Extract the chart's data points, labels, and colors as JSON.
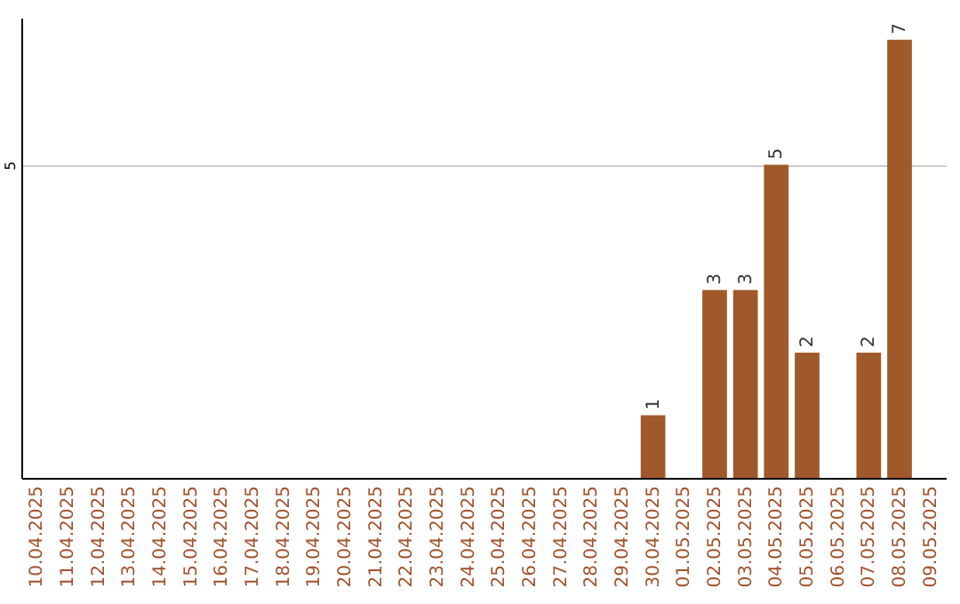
{
  "chart_data": {
    "type": "bar",
    "categories": [
      "10.04.2025",
      "11.04.2025",
      "12.04.2025",
      "13.04.2025",
      "14.04.2025",
      "15.04.2025",
      "16.04.2025",
      "17.04.2025",
      "18.04.2025",
      "19.04.2025",
      "20.04.2025",
      "21.04.2025",
      "22.04.2025",
      "23.04.2025",
      "24.04.2025",
      "25.04.2025",
      "26.04.2025",
      "27.04.2025",
      "28.04.2025",
      "29.04.2025",
      "30.04.2025",
      "01.05.2025",
      "02.05.2025",
      "03.05.2025",
      "04.05.2025",
      "05.05.2025",
      "06.05.2025",
      "07.05.2025",
      "08.05.2025",
      "09.05.2025"
    ],
    "values": [
      null,
      null,
      null,
      null,
      null,
      null,
      null,
      null,
      null,
      null,
      null,
      null,
      null,
      null,
      null,
      null,
      null,
      null,
      null,
      null,
      1,
      null,
      3,
      3,
      5,
      2,
      null,
      2,
      7,
      null
    ],
    "data_labels": true,
    "color": "#a0592b",
    "ylim": [
      0,
      7.35
    ],
    "yticks": [
      5
    ],
    "grid": "y"
  }
}
